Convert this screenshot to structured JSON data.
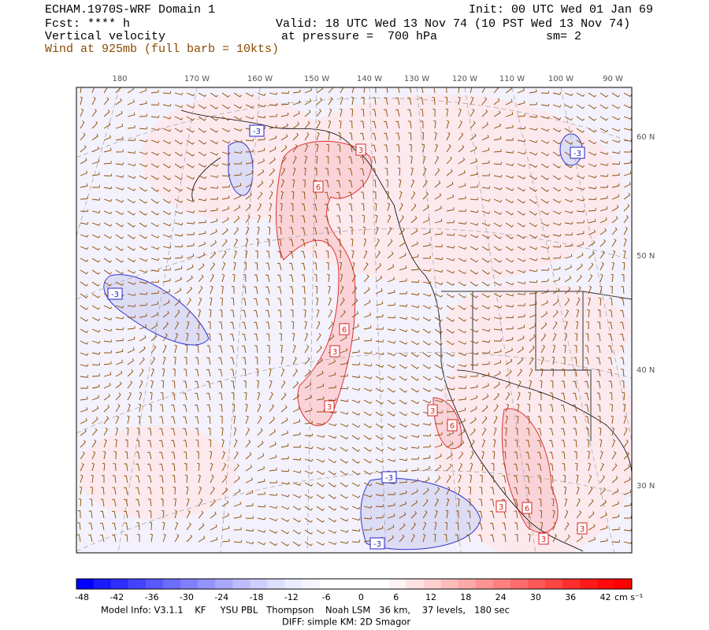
{
  "header": {
    "model": "ECHAM.1970S-WRF Domain 1",
    "forecast": "Fcst: **** h",
    "field": "Vertical velocity",
    "wind": "Wind at 925mb (full barb = 10kts)",
    "init": "Init: 00 UTC Wed 01 Jan 69",
    "valid": "Valid: 18 UTC Wed 13 Nov 74 (10 PST Wed 13 Nov 74)",
    "pressure": "at pressure =  700 hPa",
    "smoothing": "sm= 2"
  },
  "map": {
    "lon_labels": [
      "180",
      "170 W",
      "160 W",
      "150 W",
      "140 W",
      "130 W",
      "120 W",
      "110 W",
      "100 W",
      "90 W"
    ],
    "lat_labels": [
      "60 N",
      "50 N",
      "40 N",
      "30 N"
    ],
    "contour_labels": [
      "-3",
      "-3",
      "-3",
      "-3",
      "-3",
      "3",
      "6",
      "6",
      "3",
      "3",
      "3",
      "6",
      "3",
      "6",
      "3",
      "3"
    ]
  },
  "colorbar": {
    "labels": [
      "-48",
      "-42",
      "-36",
      "-30",
      "-24",
      "-18",
      "-12",
      "-6",
      "0",
      "6",
      "12",
      "18",
      "24",
      "30",
      "36",
      "42"
    ],
    "units": "cm s⁻¹",
    "colors": [
      "#0000ff",
      "#1a1aff",
      "#2e2eff",
      "#4444ff",
      "#5858ff",
      "#6c6cff",
      "#8080ff",
      "#9494ff",
      "#a8a8ff",
      "#bcbcff",
      "#ceceff",
      "#dedeff",
      "#ececff",
      "#f4f4ff",
      "#ffffff",
      "#ffffff",
      "#ffffff",
      "#ffffff",
      "#fff2f2",
      "#ffe2e2",
      "#ffd0d0",
      "#ffbcbc",
      "#ffa8a8",
      "#ff9494",
      "#ff8080",
      "#ff6c6c",
      "#ff5858",
      "#ff4444",
      "#ff2e2e",
      "#ff1a1a",
      "#ff0a0a",
      "#ff0000"
    ]
  },
  "footer": {
    "model_info": "Model Info: V3.1.1    KF     YSU PBL   Thompson    Noah LSM   36 km,    37 levels,   180 sec",
    "diff": "DIFF: simple KM: 2D Smagor"
  }
}
